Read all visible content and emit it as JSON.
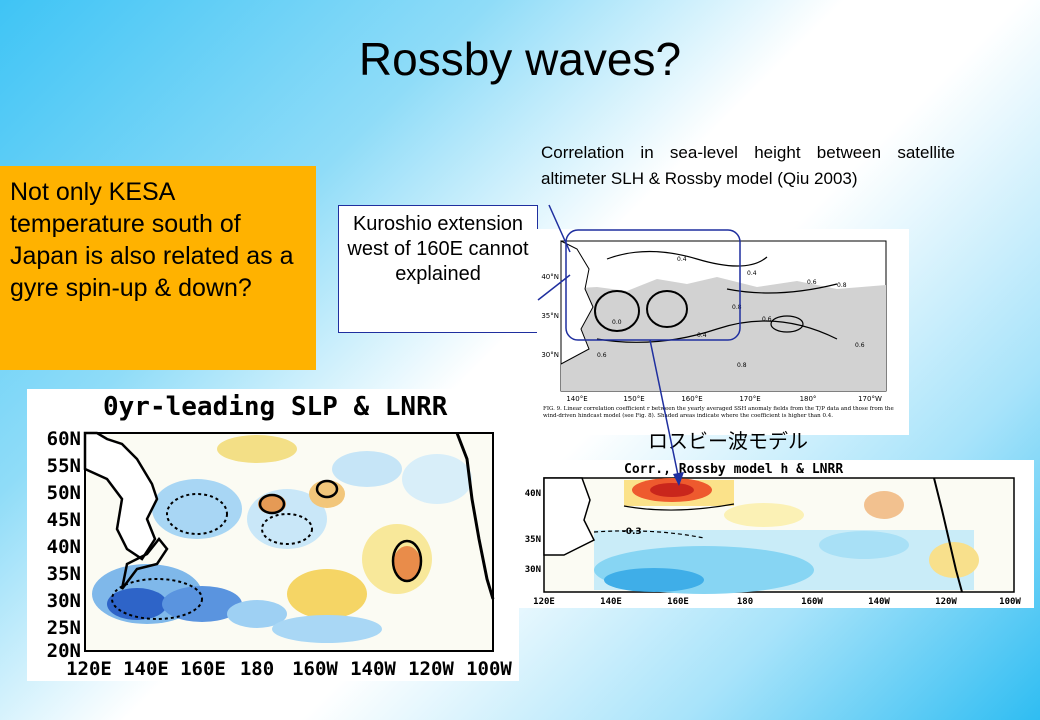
{
  "slide": {
    "title": "Rossby waves?",
    "orange_text": "Not only KESA temperature south of Japan is also related as a gyre spin-up & down?",
    "kuroshio_text": "Kuroshio extension west of 160E cannot explained",
    "correlation_text": "Correlation in sea-level height between satellite altimeter SLH & Rossby model (Qiu 2003)",
    "rossby_jp_label": "ロスビー波モデル"
  },
  "slp_map": {
    "title": "0yr-leading SLP & LNRR",
    "lat_labels": [
      "60N",
      "55N",
      "50N",
      "45N",
      "40N",
      "35N",
      "30N",
      "25N",
      "20N"
    ],
    "lon_labels": [
      "120E",
      "140E",
      "160E",
      "180",
      "160W",
      "140W",
      "120W",
      "100W"
    ]
  },
  "qiu_figure": {
    "lat_labels": [
      "40°N",
      "35°N",
      "30°N"
    ],
    "lon_labels": [
      "140°E",
      "150°E",
      "160°E",
      "170°E",
      "180°",
      "170°W"
    ],
    "contour_labels": [
      "0.4",
      "0.4",
      "0.6",
      "0.8",
      "0.0",
      "0.8",
      "0.4",
      "0.6",
      "0.6",
      "0.8",
      "0.6"
    ],
    "caption": "FIG. 9. Linear correlation coefficient r between the yearly averaged SSH anomaly fields from the T/P data and those from the wind-driven hindcast model (see Fig. 8). Shaded areas indicate where the coefficient is higher than 0.4."
  },
  "rossby_map": {
    "title": "Corr., Rossby model h & LNRR",
    "lat_labels": [
      "40N",
      "35N",
      "30N"
    ],
    "lon_labels": [
      "120E",
      "140E",
      "160E",
      "180",
      "160W",
      "140W",
      "120W",
      "100W"
    ],
    "contour_label": "-0.3"
  }
}
